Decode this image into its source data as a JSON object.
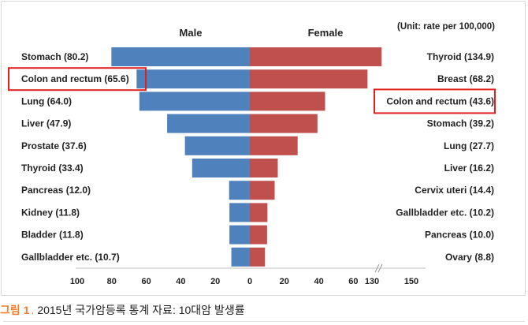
{
  "chart_data": {
    "type": "bar",
    "unit_note": "(Unit: rate per 100,000)",
    "male": {
      "header": "Male",
      "color": "#4f81bd",
      "bars": [
        {
          "label": "Stomach (80.2)",
          "value": 80.2
        },
        {
          "label": "Colon and rectum (65.6)",
          "value": 65.6,
          "highlight": true
        },
        {
          "label": "Lung (64.0)",
          "value": 64.0
        },
        {
          "label": "Liver (47.9)",
          "value": 47.9
        },
        {
          "label": "Prostate (37.6)",
          "value": 37.6
        },
        {
          "label": "Thyroid (33.4)",
          "value": 33.4
        },
        {
          "label": "Pancreas (12.0)",
          "value": 12.0
        },
        {
          "label": "Kidney (11.8)",
          "value": 11.8
        },
        {
          "label": "Bladder (11.8)",
          "value": 11.8
        },
        {
          "label": "Gallbladder etc. (10.7)",
          "value": 10.7
        }
      ]
    },
    "female": {
      "header": "Female",
      "color": "#c0504d",
      "bars": [
        {
          "label": "Thyroid (134.9)",
          "value": 134.9
        },
        {
          "label": "Breast (68.2)",
          "value": 68.2
        },
        {
          "label": "Colon and rectum (43.6)",
          "value": 43.6,
          "highlight": true
        },
        {
          "label": "Stomach (39.2)",
          "value": 39.2
        },
        {
          "label": "Lung (27.7)",
          "value": 27.7
        },
        {
          "label": "Liver (16.2)",
          "value": 16.2
        },
        {
          "label": "Cervix uteri (14.4)",
          "value": 14.4
        },
        {
          "label": "Gallbladder etc. (10.2)",
          "value": 10.2
        },
        {
          "label": "Pancreas (10.0)",
          "value": 10.0
        },
        {
          "label": "Ovary (8.8)",
          "value": 8.8
        }
      ]
    },
    "x_axis": {
      "male_ticks": [
        100,
        80,
        60,
        40,
        20,
        0
      ],
      "female_ticks": [
        20,
        40,
        60
      ],
      "broken_ticks": [
        130,
        150
      ],
      "break_after": 70,
      "axis_break": true
    },
    "highlight_color": "#e02020"
  },
  "caption": {
    "label": "그림 1",
    "separator": ".",
    "text": "2015년 국가암등록 통계 자료: 10대암 발생률"
  }
}
